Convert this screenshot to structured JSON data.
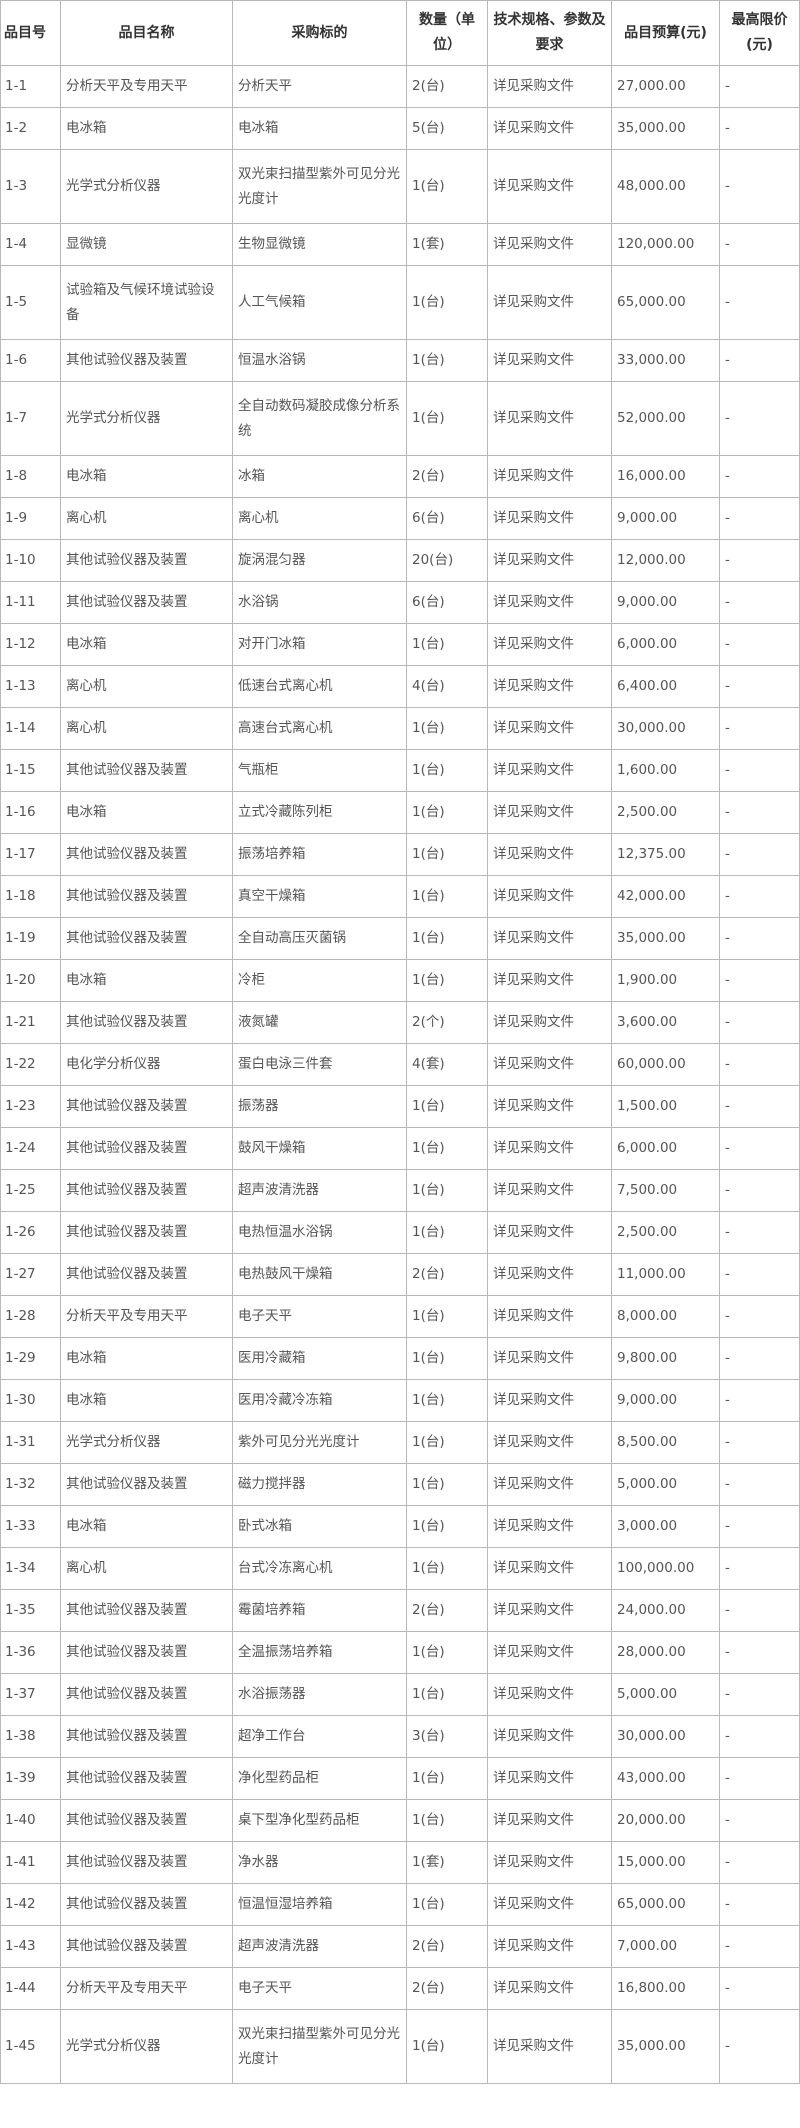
{
  "table": {
    "headers": [
      "品目号",
      "品目名称",
      "采购标的",
      "数量（单位）",
      "技术规格、参数及要求",
      "品目预算(元)",
      "最高限价(元)"
    ],
    "rows": [
      [
        "1-1",
        "分析天平及专用天平",
        "分析天平",
        "2(台)",
        "详见采购文件",
        "27,000.00",
        "-"
      ],
      [
        "1-2",
        "电冰箱",
        "电冰箱",
        "5(台)",
        "详见采购文件",
        "35,000.00",
        "-"
      ],
      [
        "1-3",
        "光学式分析仪器",
        "双光束扫描型紫外可见分光光度计",
        "1(台)",
        "详见采购文件",
        "48,000.00",
        "-"
      ],
      [
        "1-4",
        "显微镜",
        "生物显微镜",
        "1(套)",
        "详见采购文件",
        "120,000.00",
        "-"
      ],
      [
        "1-5",
        "试验箱及气候环境试验设备",
        "人工气候箱",
        "1(台)",
        "详见采购文件",
        "65,000.00",
        "-"
      ],
      [
        "1-6",
        "其他试验仪器及装置",
        "恒温水浴锅",
        "1(台)",
        "详见采购文件",
        "33,000.00",
        "-"
      ],
      [
        "1-7",
        "光学式分析仪器",
        "全自动数码凝胶成像分析系统",
        "1(台)",
        "详见采购文件",
        "52,000.00",
        "-"
      ],
      [
        "1-8",
        "电冰箱",
        "冰箱",
        "2(台)",
        "详见采购文件",
        "16,000.00",
        "-"
      ],
      [
        "1-9",
        "离心机",
        "离心机",
        "6(台)",
        "详见采购文件",
        "9,000.00",
        "-"
      ],
      [
        "1-10",
        "其他试验仪器及装置",
        "旋涡混匀器",
        "20(台)",
        "详见采购文件",
        "12,000.00",
        "-"
      ],
      [
        "1-11",
        "其他试验仪器及装置",
        "水浴锅",
        "6(台)",
        "详见采购文件",
        "9,000.00",
        "-"
      ],
      [
        "1-12",
        "电冰箱",
        "对开门冰箱",
        "1(台)",
        "详见采购文件",
        "6,000.00",
        "-"
      ],
      [
        "1-13",
        "离心机",
        "低速台式离心机",
        "4(台)",
        "详见采购文件",
        "6,400.00",
        "-"
      ],
      [
        "1-14",
        "离心机",
        "高速台式离心机",
        "1(台)",
        "详见采购文件",
        "30,000.00",
        "-"
      ],
      [
        "1-15",
        "其他试验仪器及装置",
        "气瓶柜",
        "1(台)",
        "详见采购文件",
        "1,600.00",
        "-"
      ],
      [
        "1-16",
        "电冰箱",
        "立式冷藏陈列柜",
        "1(台)",
        "详见采购文件",
        "2,500.00",
        "-"
      ],
      [
        "1-17",
        "其他试验仪器及装置",
        "振荡培养箱",
        "1(台)",
        "详见采购文件",
        "12,375.00",
        "-"
      ],
      [
        "1-18",
        "其他试验仪器及装置",
        "真空干燥箱",
        "1(台)",
        "详见采购文件",
        "42,000.00",
        "-"
      ],
      [
        "1-19",
        "其他试验仪器及装置",
        "全自动高压灭菌锅",
        "1(台)",
        "详见采购文件",
        "35,000.00",
        "-"
      ],
      [
        "1-20",
        "电冰箱",
        "冷柜",
        "1(台)",
        "详见采购文件",
        "1,900.00",
        "-"
      ],
      [
        "1-21",
        "其他试验仪器及装置",
        "液氮罐",
        "2(个)",
        "详见采购文件",
        "3,600.00",
        "-"
      ],
      [
        "1-22",
        "电化学分析仪器",
        "蛋白电泳三件套",
        "4(套)",
        "详见采购文件",
        "60,000.00",
        "-"
      ],
      [
        "1-23",
        "其他试验仪器及装置",
        "振荡器",
        "1(台)",
        "详见采购文件",
        "1,500.00",
        "-"
      ],
      [
        "1-24",
        "其他试验仪器及装置",
        "鼓风干燥箱",
        "1(台)",
        "详见采购文件",
        "6,000.00",
        "-"
      ],
      [
        "1-25",
        "其他试验仪器及装置",
        "超声波清洗器",
        "1(台)",
        "详见采购文件",
        "7,500.00",
        "-"
      ],
      [
        "1-26",
        "其他试验仪器及装置",
        "电热恒温水浴锅",
        "1(台)",
        "详见采购文件",
        "2,500.00",
        "-"
      ],
      [
        "1-27",
        "其他试验仪器及装置",
        "电热鼓风干燥箱",
        "2(台)",
        "详见采购文件",
        "11,000.00",
        "-"
      ],
      [
        "1-28",
        "分析天平及专用天平",
        "电子天平",
        "1(台)",
        "详见采购文件",
        "8,000.00",
        "-"
      ],
      [
        "1-29",
        "电冰箱",
        "医用冷藏箱",
        "1(台)",
        "详见采购文件",
        "9,800.00",
        "-"
      ],
      [
        "1-30",
        "电冰箱",
        "医用冷藏冷冻箱",
        "1(台)",
        "详见采购文件",
        "9,000.00",
        "-"
      ],
      [
        "1-31",
        "光学式分析仪器",
        "紫外可见分光光度计",
        "1(台)",
        "详见采购文件",
        "8,500.00",
        "-"
      ],
      [
        "1-32",
        "其他试验仪器及装置",
        "磁力搅拌器",
        "1(台)",
        "详见采购文件",
        "5,000.00",
        "-"
      ],
      [
        "1-33",
        "电冰箱",
        "卧式冰箱",
        "1(台)",
        "详见采购文件",
        "3,000.00",
        "-"
      ],
      [
        "1-34",
        "离心机",
        "台式冷冻离心机",
        "1(台)",
        "详见采购文件",
        "100,000.00",
        "-"
      ],
      [
        "1-35",
        "其他试验仪器及装置",
        "霉菌培养箱",
        "2(台)",
        "详见采购文件",
        "24,000.00",
        "-"
      ],
      [
        "1-36",
        "其他试验仪器及装置",
        "全温振荡培养箱",
        "1(台)",
        "详见采购文件",
        "28,000.00",
        "-"
      ],
      [
        "1-37",
        "其他试验仪器及装置",
        "水浴振荡器",
        "1(台)",
        "详见采购文件",
        "5,000.00",
        "-"
      ],
      [
        "1-38",
        "其他试验仪器及装置",
        "超净工作台",
        "3(台)",
        "详见采购文件",
        "30,000.00",
        "-"
      ],
      [
        "1-39",
        "其他试验仪器及装置",
        "净化型药品柜",
        "1(台)",
        "详见采购文件",
        "43,000.00",
        "-"
      ],
      [
        "1-40",
        "其他试验仪器及装置",
        "桌下型净化型药品柜",
        "1(台)",
        "详见采购文件",
        "20,000.00",
        "-"
      ],
      [
        "1-41",
        "其他试验仪器及装置",
        "净水器",
        "1(套)",
        "详见采购文件",
        "15,000.00",
        "-"
      ],
      [
        "1-42",
        "其他试验仪器及装置",
        "恒温恒湿培养箱",
        "1(台)",
        "详见采购文件",
        "65,000.00",
        "-"
      ],
      [
        "1-43",
        "其他试验仪器及装置",
        "超声波清洗器",
        "2(台)",
        "详见采购文件",
        "7,000.00",
        "-"
      ],
      [
        "1-44",
        "分析天平及专用天平",
        "电子天平",
        "2(台)",
        "详见采购文件",
        "16,800.00",
        "-"
      ],
      [
        "1-45",
        "光学式分析仪器",
        "双光束扫描型紫外可见分光光度计",
        "1(台)",
        "详见采购文件",
        "35,000.00",
        "-"
      ]
    ]
  }
}
